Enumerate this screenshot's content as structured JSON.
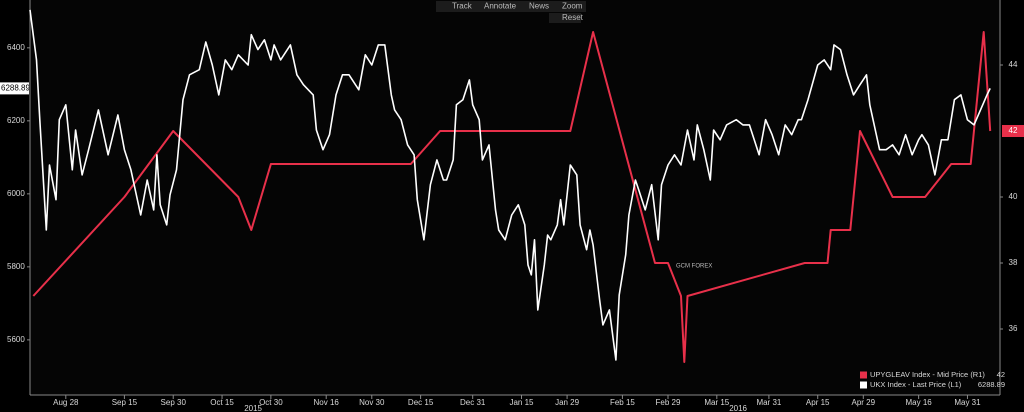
{
  "toolbar": {
    "buttons": [
      "Track",
      "Annotate",
      "News",
      "Zoom",
      "Reset"
    ]
  },
  "chart_data": {
    "type": "line",
    "annotation": "GCM FOREX",
    "x_year_labels": [
      "2015",
      "2016"
    ],
    "xlim": [
      "2015-08-17",
      "2016-06-10"
    ],
    "xticks": [
      {
        "value": "2015-08-28",
        "label": "Aug 28"
      },
      {
        "value": "2015-09-15",
        "label": "Sep 15"
      },
      {
        "value": "2015-09-30",
        "label": "Sep 30"
      },
      {
        "value": "2015-10-15",
        "label": "Oct 15"
      },
      {
        "value": "2015-10-30",
        "label": "Oct 30"
      },
      {
        "value": "2015-11-16",
        "label": "Nov 16"
      },
      {
        "value": "2015-11-30",
        "label": "Nov 30"
      },
      {
        "value": "2015-12-15",
        "label": "Dec 15"
      },
      {
        "value": "2015-12-31",
        "label": "Dec 31"
      },
      {
        "value": "2016-01-15",
        "label": "Jan 15"
      },
      {
        "value": "2016-01-29",
        "label": "Jan 29"
      },
      {
        "value": "2016-02-15",
        "label": "Feb 15"
      },
      {
        "value": "2016-02-29",
        "label": "Feb 29"
      },
      {
        "value": "2016-03-15",
        "label": "Mar 15"
      },
      {
        "value": "2016-03-31",
        "label": "Mar 31"
      },
      {
        "value": "2016-04-15",
        "label": "Apr 15"
      },
      {
        "value": "2016-04-29",
        "label": "Apr 29"
      },
      {
        "value": "2016-05-16",
        "label": "May 16"
      },
      {
        "value": "2016-05-31",
        "label": "May 31"
      }
    ],
    "ylim": [
      5449,
      6531
    ],
    "yticks": [
      5600,
      5800,
      6000,
      6200,
      6400
    ],
    "y2lim": [
      34,
      45.97
    ],
    "y2ticks": [
      36,
      38,
      40,
      44
    ],
    "series": [
      {
        "name": "UPYGLEAV Index - Mid Price (R1)",
        "color": "#e8304a",
        "axis": "y2",
        "x": [
          "2015-08-18",
          "2015-09-15",
          "2015-09-30",
          "2015-10-20",
          "2015-10-24",
          "2015-10-30",
          "2015-12-12",
          "2015-12-21",
          "2016-01-30",
          "2016-02-06",
          "2016-02-25",
          "2016-02-29",
          "2016-03-04",
          "2016-03-05",
          "2016-03-06",
          "2016-04-11",
          "2016-04-18",
          "2016-04-19",
          "2016-04-25",
          "2016-04-28",
          "2016-05-08",
          "2016-05-18",
          "2016-05-26",
          "2016-06-01",
          "2016-06-05",
          "2016-06-07"
        ],
        "values": [
          37,
          40,
          42,
          40,
          39,
          41,
          41,
          42,
          42,
          45,
          38,
          38,
          37,
          35,
          37,
          38,
          38,
          39,
          39,
          42,
          40,
          40,
          41,
          41,
          45,
          42
        ]
      },
      {
        "name": "UKX Index - Last Price (L1)",
        "color": "#ffffff",
        "x": [
          "2015-08-17",
          "2015-08-19",
          "2015-08-20",
          "2015-08-22",
          "2015-08-23",
          "2015-08-25",
          "2015-08-26",
          "2015-08-28",
          "2015-08-30",
          "2015-08-31",
          "2015-09-02",
          "2015-09-04",
          "2015-09-07",
          "2015-09-10",
          "2015-09-13",
          "2015-09-15",
          "2015-09-17",
          "2015-09-20",
          "2015-09-22",
          "2015-09-24",
          "2015-09-25",
          "2015-09-26",
          "2015-09-28",
          "2015-09-29",
          "2015-10-01",
          "2015-10-03",
          "2015-10-05",
          "2015-10-08",
          "2015-10-10",
          "2015-10-12",
          "2015-10-14",
          "2015-10-16",
          "2015-10-18",
          "2015-10-20",
          "2015-10-23",
          "2015-10-24",
          "2015-10-26",
          "2015-10-28",
          "2015-10-30",
          "2015-10-31",
          "2015-11-02",
          "2015-11-05",
          "2015-11-07",
          "2015-11-09",
          "2015-11-12",
          "2015-11-13",
          "2015-11-15",
          "2015-11-17",
          "2015-11-19",
          "2015-11-21",
          "2015-11-23",
          "2015-11-26",
          "2015-11-28",
          "2015-11-30",
          "2015-12-02",
          "2015-12-04",
          "2015-12-06",
          "2015-12-07",
          "2015-12-09",
          "2015-12-11",
          "2015-12-13",
          "2015-12-14",
          "2015-12-16",
          "2015-12-18",
          "2015-12-20",
          "2015-12-22",
          "2015-12-23",
          "2015-12-25",
          "2015-12-26",
          "2015-12-28",
          "2015-12-30",
          "2015-12-31",
          "2016-01-02",
          "2016-01-03",
          "2016-01-05",
          "2016-01-07",
          "2016-01-08",
          "2016-01-10",
          "2016-01-12",
          "2016-01-14",
          "2016-01-16",
          "2016-01-17",
          "2016-01-18",
          "2016-01-19",
          "2016-01-20",
          "2016-01-22",
          "2016-01-23",
          "2016-01-24",
          "2016-01-26",
          "2016-01-27",
          "2016-01-28",
          "2016-01-30",
          "2016-02-01",
          "2016-02-02",
          "2016-02-04",
          "2016-02-05",
          "2016-02-06",
          "2016-02-08",
          "2016-02-09",
          "2016-02-11",
          "2016-02-13",
          "2016-02-14",
          "2016-02-16",
          "2016-02-17",
          "2016-02-19",
          "2016-02-20",
          "2016-02-22",
          "2016-02-24",
          "2016-02-26",
          "2016-02-27",
          "2016-02-29",
          "2016-03-02",
          "2016-03-04",
          "2016-03-06",
          "2016-03-08",
          "2016-03-09",
          "2016-03-11",
          "2016-03-13",
          "2016-03-14",
          "2016-03-16",
          "2016-03-18",
          "2016-03-21",
          "2016-03-23",
          "2016-03-25",
          "2016-03-28",
          "2016-03-30",
          "2016-04-01",
          "2016-04-03",
          "2016-04-05",
          "2016-04-07",
          "2016-04-09",
          "2016-04-10",
          "2016-04-12",
          "2016-04-15",
          "2016-04-17",
          "2016-04-19",
          "2016-04-20",
          "2016-04-22",
          "2016-04-24",
          "2016-04-26",
          "2016-04-28",
          "2016-04-30",
          "2016-05-01",
          "2016-05-04",
          "2016-05-06",
          "2016-05-08",
          "2016-05-10",
          "2016-05-12",
          "2016-05-14",
          "2016-05-16",
          "2016-05-17",
          "2016-05-19",
          "2016-05-21",
          "2016-05-23",
          "2016-05-25",
          "2016-05-27",
          "2016-05-29",
          "2016-05-31",
          "2016-06-02",
          "2016-06-04",
          "2016-06-06",
          "2016-06-07"
        ],
        "values": [
          6504,
          6367,
          6203,
          5901,
          6079,
          5984,
          6203,
          6244,
          6066,
          6175,
          6052,
          6121,
          6230,
          6107,
          6216,
          6121,
          6066,
          5942,
          6038,
          5956,
          6107,
          5970,
          5915,
          5997,
          6066,
          6258,
          6326,
          6340,
          6416,
          6353,
          6271,
          6367,
          6340,
          6381,
          6353,
          6436,
          6395,
          6422,
          6367,
          6408,
          6367,
          6408,
          6326,
          6299,
          6271,
          6175,
          6121,
          6162,
          6271,
          6326,
          6326,
          6285,
          6381,
          6353,
          6408,
          6408,
          6271,
          6230,
          6203,
          6134,
          6107,
          5984,
          5874,
          6025,
          6093,
          6038,
          6038,
          6093,
          6244,
          6258,
          6312,
          6244,
          6203,
          6093,
          6134,
          5956,
          5901,
          5874,
          5942,
          5970,
          5915,
          5805,
          5778,
          5874,
          5682,
          5805,
          5887,
          5874,
          5915,
          5984,
          5915,
          6079,
          6052,
          5915,
          5847,
          5901,
          5860,
          5710,
          5641,
          5682,
          5545,
          5723,
          5833,
          5942,
          6038,
          6011,
          5956,
          6025,
          5874,
          6025,
          6079,
          6107,
          6079,
          6175,
          6093,
          6189,
          6121,
          6038,
          6175,
          6148,
          6189,
          6203,
          6189,
          6189,
          6107,
          6203,
          6162,
          6107,
          6189,
          6162,
          6203,
          6203,
          6258,
          6353,
          6367,
          6340,
          6408,
          6395,
          6326,
          6271,
          6299,
          6326,
          6244,
          6121,
          6121,
          6134,
          6107,
          6162,
          6107,
          6148,
          6162,
          6134,
          6052,
          6148,
          6148,
          6258,
          6271,
          6203,
          6189,
          6230,
          6271,
          6288.89
        ]
      }
    ]
  }
}
